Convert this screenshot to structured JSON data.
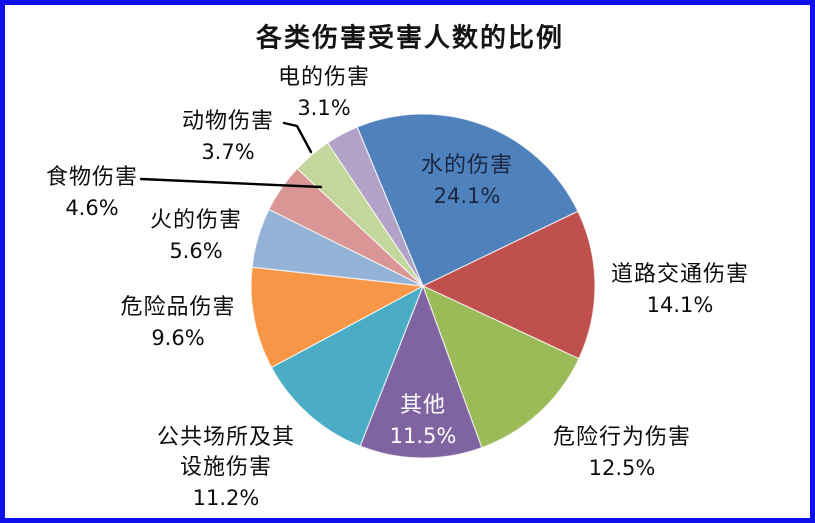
{
  "frame": {
    "border_color": "#1010EE",
    "background": "#FFFFFF"
  },
  "chart_data": {
    "type": "pie",
    "title": "各类伤害受害人数的比例",
    "legend_position": "none",
    "grid": false,
    "start_angle_deg": -22.5,
    "slice_stroke": "rgba(255,255,255,0.7)",
    "slices": [
      {
        "id": "water",
        "label": "水的伤害",
        "value": 24.1,
        "pct_text": "24.1%",
        "color": "#4F81BD",
        "label_placement": "inside"
      },
      {
        "id": "road-traffic",
        "label": "道路交通伤害",
        "value": 14.1,
        "pct_text": "14.1%",
        "color": "#C0504D",
        "label_placement": "outside"
      },
      {
        "id": "risky-behavior",
        "label": "危险行为伤害",
        "value": 12.5,
        "pct_text": "12.5%",
        "color": "#9BBB59",
        "label_placement": "outside"
      },
      {
        "id": "other",
        "label": "其他",
        "value": 11.5,
        "pct_text": "11.5%",
        "color": "#8064A2",
        "label_placement": "inside"
      },
      {
        "id": "public-facilities",
        "label": "公共场所及其设施伤害",
        "line1": "公共场所及其",
        "line2": "设施伤害",
        "value": 11.2,
        "pct_text": "11.2%",
        "color": "#4BACC6",
        "label_placement": "outside"
      },
      {
        "id": "hazardous-goods",
        "label": "危险品伤害",
        "value": 9.6,
        "pct_text": "9.6%",
        "color": "#F79646",
        "label_placement": "outside"
      },
      {
        "id": "fire",
        "label": "火的伤害",
        "value": 5.6,
        "pct_text": "5.6%",
        "color": "#95B3D7",
        "label_placement": "outside"
      },
      {
        "id": "food",
        "label": "食物伤害",
        "value": 4.6,
        "pct_text": "4.6%",
        "color": "#D99694",
        "label_placement": "outside"
      },
      {
        "id": "animal",
        "label": "动物伤害",
        "value": 3.7,
        "pct_text": "3.7%",
        "color": "#C3D69B",
        "label_placement": "outside"
      },
      {
        "id": "electric",
        "label": "电的伤害",
        "value": 3.1,
        "pct_text": "3.1%",
        "color": "#B3A2C7",
        "label_placement": "outside"
      }
    ],
    "leader_lines": [
      {
        "for": "animal",
        "points": [
          [
            284,
            123
          ],
          [
            297,
            126
          ],
          [
            311,
            152
          ]
        ]
      },
      {
        "for": "food",
        "points": [
          [
            141,
            179
          ],
          [
            321,
            187
          ]
        ]
      }
    ]
  }
}
